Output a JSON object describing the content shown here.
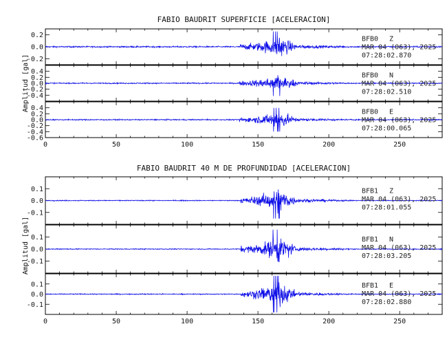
{
  "chart_data": [
    {
      "type": "line",
      "title": "FABIO BAUDRIT SUPERFICIE [ACELERACION]",
      "ylabel": "Amplitud [gal]",
      "xlim": [
        0,
        280
      ],
      "xticks": [
        "0",
        "50",
        "100",
        "150",
        "200",
        "250"
      ],
      "panels": [
        {
          "station": "BFB0",
          "component": "Z",
          "date": "MAR 04 (063), 2025",
          "time": "07:28:02.870",
          "ylim": [
            -0.3,
            0.3
          ],
          "yticks": [
            "-0.2",
            "0.0",
            "0.2"
          ],
          "trace": {
            "noise": 0.012,
            "onset": 137,
            "peak_time": 163,
            "peak": 0.27,
            "decay_end": 178,
            "end": 280
          }
        },
        {
          "station": "BFB0",
          "component": "N",
          "date": "MAR 04 (063), 2025",
          "time": "07:28:02.510",
          "ylim": [
            -0.6,
            0.6
          ],
          "yticks": [
            "-0.4",
            "-0.2",
            "0.0",
            "0.2",
            "0.4"
          ],
          "trace": {
            "noise": 0.02,
            "onset": 137,
            "peak_time": 163,
            "peak": 0.45,
            "decay_end": 178,
            "end": 280
          }
        },
        {
          "station": "BFB0",
          "component": "E",
          "date": "MAR 04 (063), 2025",
          "time": "07:28:00.065",
          "ylim": [
            -0.6,
            0.6
          ],
          "yticks": [
            "-0.6",
            "-0.4",
            "-0.2",
            "0.0",
            "0.2",
            "0.4"
          ],
          "trace": {
            "noise": 0.02,
            "onset": 137,
            "peak_time": 163,
            "peak": 0.42,
            "decay_end": 178,
            "end": 280
          }
        }
      ]
    },
    {
      "type": "line",
      "title": "FABIO BAUDRIT 40 M DE PROFUNDIDAD [ACELERACION]",
      "ylabel": "Amplitud [gal]",
      "xlim": [
        0,
        280
      ],
      "xticks": [
        "0",
        "50",
        "100",
        "150",
        "200",
        "250"
      ],
      "panels": [
        {
          "station": "BFB1",
          "component": "Z",
          "date": "MAR 04 (063), 2025",
          "time": "07:28:01.055",
          "ylim": [
            -0.2,
            0.2
          ],
          "yticks": [
            "-0.1",
            "0.0",
            "0.1"
          ],
          "trace": {
            "noise": 0.004,
            "onset": 138,
            "peak_time": 163,
            "peak": 0.16,
            "decay_end": 178,
            "end": 280
          }
        },
        {
          "station": "BFB1",
          "component": "N",
          "date": "MAR 04 (063), 2025",
          "time": "07:28:03.205",
          "ylim": [
            -0.2,
            0.2
          ],
          "yticks": [
            "-0.1",
            "0.0",
            "0.1"
          ],
          "trace": {
            "noise": 0.004,
            "onset": 138,
            "peak_time": 163,
            "peak": 0.17,
            "decay_end": 178,
            "end": 280
          }
        },
        {
          "station": "BFB1",
          "component": "E",
          "date": "MAR 04 (063), 2025",
          "time": "07:28:02.880",
          "ylim": [
            -0.2,
            0.2
          ],
          "yticks": [
            "-0.1",
            "0.0",
            "0.1"
          ],
          "trace": {
            "noise": 0.005,
            "onset": 138,
            "peak_time": 162,
            "peak": 0.19,
            "decay_end": 178,
            "end": 280
          }
        }
      ]
    }
  ],
  "colors": {
    "trace": "#1010e8",
    "axes": "#000000"
  }
}
